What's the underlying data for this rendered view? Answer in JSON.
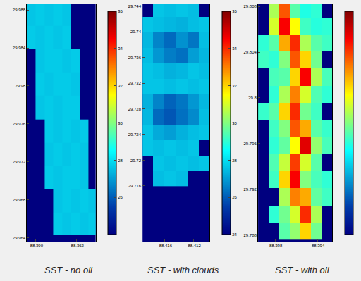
{
  "chart_data": [
    {
      "type": "heatmap",
      "title": "SST - no oil",
      "xlim": [
        -88.396,
        -88.349
      ],
      "xticks": [
        {
          "value": -88.39,
          "label": "-88.390"
        },
        -88.362
      ],
      "ylim": [
        29.9636,
        29.9886
      ],
      "yticks": [
        29.964,
        29.968,
        29.972,
        29.976,
        29.98,
        29.984,
        29.988
      ],
      "x": [
        -88.393,
        -88.387,
        -88.381,
        -88.375,
        -88.369,
        -88.363,
        -88.357,
        -88.351
      ],
      "y": [
        29.9875,
        29.9851,
        29.9826,
        29.9802,
        29.9777,
        29.9753,
        29.9728,
        29.9704,
        29.9679,
        29.9655
      ],
      "z": [
        [
          27.6,
          27.7,
          27.6,
          27.7,
          27.6,
          null,
          null,
          null
        ],
        [
          27.7,
          27.6,
          27.7,
          27.6,
          27.7,
          null,
          null,
          null
        ],
        [
          null,
          27.6,
          27.7,
          27.7,
          27.6,
          27.7,
          null,
          null
        ],
        [
          null,
          27.7,
          27.6,
          27.7,
          27.7,
          27.6,
          null,
          null
        ],
        [
          null,
          27.6,
          27.7,
          27.6,
          27.7,
          27.7,
          null,
          null
        ],
        [
          null,
          null,
          27.7,
          27.6,
          27.7,
          27.6,
          27.7,
          null
        ],
        [
          null,
          null,
          27.6,
          27.7,
          27.6,
          27.7,
          27.6,
          null
        ],
        [
          null,
          null,
          27.7,
          27.6,
          27.7,
          27.7,
          27.6,
          null
        ],
        [
          null,
          null,
          null,
          27.6,
          27.7,
          27.6,
          27.7,
          27.6
        ],
        [
          null,
          null,
          null,
          27.7,
          27.6,
          27.7,
          27.6,
          27.7
        ]
      ],
      "colorbar_range": [
        24,
        36
      ],
      "colorbar_ticks": [
        26,
        28,
        30,
        32,
        34,
        36
      ]
    },
    {
      "type": "heatmap",
      "title": "SST - with clouds",
      "xlim": [
        -88.4191,
        -88.4098
      ],
      "xticks": [
        -88.416,
        -88.412
      ],
      "ylim": [
        29.7073,
        29.7443
      ],
      "yticks": [
        29.716,
        29.72,
        29.724,
        29.728,
        29.732,
        29.736,
        29.74,
        29.744
      ],
      "x": [
        -88.4185,
        -88.4169,
        -88.4153,
        -88.4137,
        -88.4121,
        -88.4105
      ],
      "y": [
        29.7435,
        29.7411,
        29.7387,
        29.7363,
        29.7339,
        29.7315,
        29.7291,
        29.7267,
        29.7243,
        29.7219,
        29.7195,
        29.7171
      ],
      "z": [
        [
          null,
          27.6,
          27.5,
          27.6,
          27.5,
          null
        ],
        [
          27.6,
          27.5,
          27.4,
          27.3,
          27.5,
          27.6
        ],
        [
          27.4,
          26.6,
          26.2,
          26.8,
          26.4,
          27.5
        ],
        [
          27.5,
          26.9,
          26.5,
          26.3,
          27.0,
          27.4
        ],
        [
          27.6,
          27.5,
          27.3,
          27.4,
          27.6,
          27.5
        ],
        [
          27.6,
          27.6,
          27.5,
          27.6,
          27.5,
          27.6
        ],
        [
          27.3,
          26.6,
          26.1,
          26.4,
          26.9,
          27.4
        ],
        [
          27.4,
          26.2,
          25.9,
          26.3,
          26.7,
          27.5
        ],
        [
          27.6,
          27.2,
          27.0,
          27.3,
          27.5,
          27.6
        ],
        [
          27.6,
          27.5,
          27.6,
          27.5,
          27.6,
          null
        ],
        [
          null,
          27.6,
          27.5,
          27.6,
          27.5,
          27.6
        ],
        [
          null,
          27.5,
          27.6,
          27.5,
          null,
          null
        ]
      ],
      "colorbar_range": [
        24,
        36
      ],
      "colorbar_ticks": [
        24,
        26,
        28,
        30,
        32,
        34,
        36
      ]
    },
    {
      "type": "heatmap",
      "title": "SST - with oil",
      "xlim": [
        -88.3996,
        -88.3926
      ],
      "xticks": [
        -88.398,
        -88.394
      ],
      "ylim": [
        29.7874,
        29.8082
      ],
      "yticks": [
        29.788,
        29.792,
        29.796,
        29.8,
        29.804,
        29.808
      ],
      "x": [
        -88.3991,
        -88.3981,
        -88.3971,
        -88.3961,
        -88.3951,
        -88.3941,
        -88.3931
      ],
      "y": [
        29.8078,
        29.8063,
        29.8048,
        29.8033,
        29.8018,
        29.8003,
        29.7988,
        29.7973,
        29.7958,
        29.7943,
        29.7928,
        29.7913,
        29.7898,
        29.7883
      ],
      "z": [
        [
          null,
          30.5,
          33.5,
          29.5,
          28.8,
          29.0,
          null
        ],
        [
          null,
          31.0,
          34.5,
          31.5,
          29.2,
          28.9,
          29.0
        ],
        [
          29.0,
          29.5,
          32.5,
          34.0,
          30.5,
          29.5,
          29.2
        ],
        [
          29.2,
          29.0,
          30.0,
          33.5,
          32.0,
          29.8,
          null
        ],
        [
          null,
          29.3,
          29.5,
          32.0,
          34.5,
          30.5,
          29.3
        ],
        [
          null,
          29.0,
          30.5,
          33.0,
          31.0,
          29.4,
          29.0
        ],
        [
          29.1,
          29.5,
          32.0,
          34.0,
          29.8,
          29.2,
          null
        ],
        [
          null,
          29.2,
          30.0,
          33.5,
          32.5,
          29.5,
          29.1
        ],
        [
          null,
          29.0,
          29.6,
          31.5,
          34.8,
          30.2,
          29.3
        ],
        [
          null,
          29.4,
          30.8,
          33.8,
          31.0,
          29.5,
          null
        ],
        [
          null,
          29.2,
          32.0,
          34.5,
          30.0,
          29.3,
          29.0
        ],
        [
          null,
          null,
          30.5,
          33.0,
          32.5,
          29.6,
          29.2
        ],
        [
          null,
          29.0,
          29.8,
          31.0,
          34.0,
          30.5,
          null
        ],
        [
          null,
          null,
          29.5,
          30.2,
          32.0,
          29.8,
          null
        ]
      ],
      "colorbar_range": [
        24,
        36
      ]
    }
  ]
}
